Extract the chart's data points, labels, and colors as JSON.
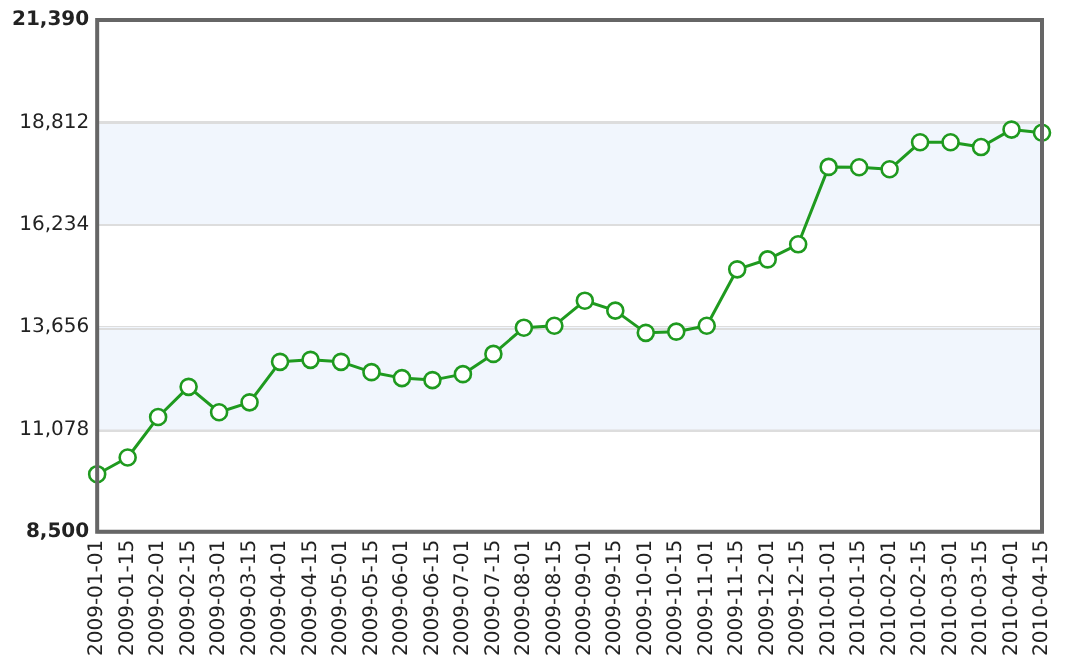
{
  "chart_data": {
    "type": "line",
    "categories": [
      "2009-01-01",
      "2009-01-15",
      "2009-02-01",
      "2009-02-15",
      "2009-03-01",
      "2009-03-15",
      "2009-04-01",
      "2009-04-15",
      "2009-05-01",
      "2009-05-15",
      "2009-06-01",
      "2009-06-15",
      "2009-07-01",
      "2009-07-15",
      "2009-08-01",
      "2009-08-15",
      "2009-09-01",
      "2009-09-15",
      "2009-10-01",
      "2009-10-15",
      "2009-11-01",
      "2009-11-15",
      "2009-12-01",
      "2009-12-15",
      "2010-01-01",
      "2010-01-15",
      "2010-02-01",
      "2010-02-15",
      "2010-03-01",
      "2010-03-15",
      "2010-04-01",
      "2010-04-15"
    ],
    "series": [
      {
        "color": "#1f9a1f",
        "values": [
          9950,
          10370,
          11390,
          12150,
          11510,
          11760,
          12780,
          12830,
          12780,
          12520,
          12370,
          12320,
          12470,
          12980,
          13640,
          13690,
          14320,
          14070,
          13510,
          13540,
          13690,
          15110,
          15360,
          15740,
          17690,
          17680,
          17630,
          18310,
          18310,
          18190,
          18630,
          18550
        ]
      }
    ],
    "ylim": [
      8500,
      21390
    ],
    "yticks": [
      {
        "value": 8500,
        "label": "8,500"
      },
      {
        "value": 11078,
        "label": "11,078"
      },
      {
        "value": 13656,
        "label": "13,656"
      },
      {
        "value": 16234,
        "label": "16,234"
      },
      {
        "value": 18812,
        "label": "18,812"
      },
      {
        "value": 21390,
        "label": "21,390"
      }
    ],
    "bands": [
      {
        "axis": "y",
        "from": 11078,
        "to": 13656,
        "color": "#f1f6fd"
      },
      {
        "axis": "y",
        "from": 16234,
        "to": 18812,
        "color": "#f1f6fd"
      }
    ],
    "grid": "y",
    "marker": "circle",
    "line_style": "solid",
    "legend": false
  }
}
